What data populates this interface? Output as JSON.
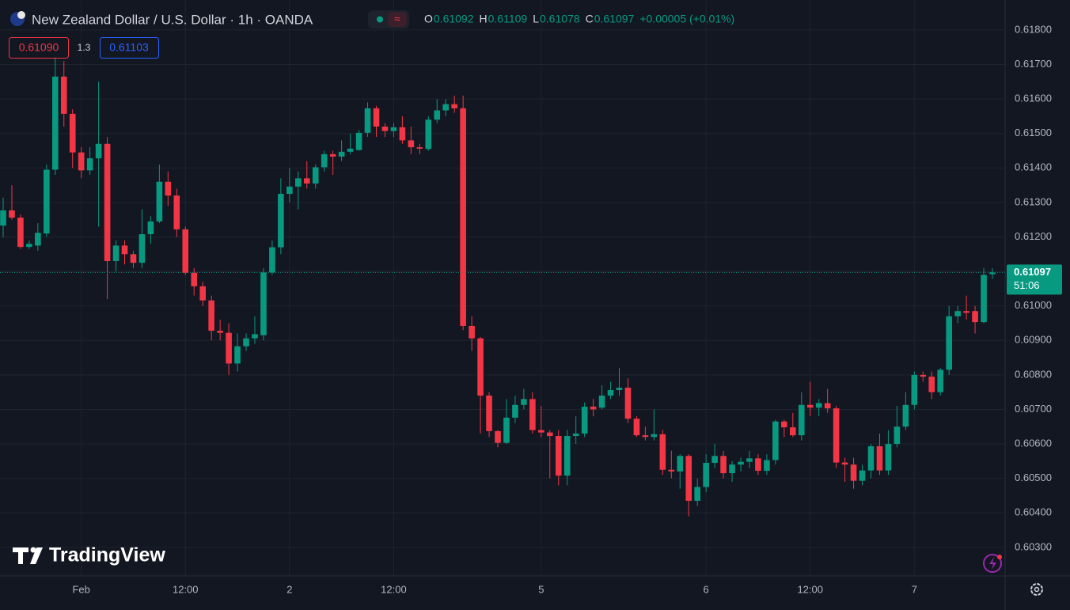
{
  "chart_data": {
    "type": "candlestick",
    "title": "New Zealand Dollar / U.S. Dollar · 1h · OANDA",
    "legend_labels": [
      "O",
      "H",
      "L",
      "C"
    ],
    "change": "+0.00005 (+0.01%)",
    "bid": "0.61090",
    "spread": "1.3",
    "ask": "0.61103",
    "countdown": "51:06",
    "brand": "TradingView",
    "up_color": "#089981",
    "down_color": "#f23645",
    "grid": true,
    "ylim": [
      0.60217,
      0.61887
    ],
    "yticks": [
      {
        "value": 0.603,
        "label": "0.60300"
      },
      {
        "value": 0.604,
        "label": "0.60400"
      },
      {
        "value": 0.605,
        "label": "0.60500"
      },
      {
        "value": 0.606,
        "label": "0.60600"
      },
      {
        "value": 0.607,
        "label": "0.60700"
      },
      {
        "value": 0.608,
        "label": "0.60800"
      },
      {
        "value": 0.609,
        "label": "0.60900"
      },
      {
        "value": 0.61,
        "label": "0.61000"
      },
      {
        "value": 0.611,
        "label": "0.61100"
      },
      {
        "value": 0.612,
        "label": "0.61200"
      },
      {
        "value": 0.613,
        "label": "0.61300"
      },
      {
        "value": 0.614,
        "label": "0.61400"
      },
      {
        "value": 0.615,
        "label": "0.61500"
      },
      {
        "value": 0.616,
        "label": "0.61600"
      },
      {
        "value": 0.617,
        "label": "0.61700"
      },
      {
        "value": 0.618,
        "label": "0.61800"
      }
    ],
    "categories": [
      null,
      null,
      null,
      null,
      null,
      null,
      null,
      null,
      null,
      "Feb",
      null,
      null,
      null,
      null,
      null,
      null,
      null,
      null,
      null,
      null,
      null,
      "12:00",
      null,
      null,
      null,
      null,
      null,
      null,
      null,
      null,
      null,
      null,
      null,
      "2",
      null,
      null,
      null,
      null,
      null,
      null,
      null,
      null,
      null,
      null,
      null,
      "12:00",
      null,
      null,
      null,
      null,
      null,
      null,
      null,
      null,
      null,
      null,
      null,
      null,
      null,
      null,
      null,
      null,
      "5",
      null,
      null,
      null,
      null,
      null,
      null,
      null,
      null,
      null,
      null,
      null,
      null,
      null,
      null,
      null,
      null,
      null,
      null,
      "6",
      null,
      null,
      null,
      null,
      null,
      null,
      null,
      null,
      null,
      null,
      null,
      "12:00",
      null,
      null,
      null,
      null,
      null,
      null,
      null,
      null,
      null,
      null,
      null,
      "7",
      null,
      null,
      null,
      null,
      null,
      null,
      null,
      null,
      null
    ],
    "open": [
      0.61233,
      0.61277,
      0.61256,
      0.61171,
      0.61175,
      0.6121,
      0.61395,
      0.61665,
      0.61557,
      0.61445,
      0.61393,
      0.61428,
      0.6147,
      0.6113,
      0.61175,
      0.6115,
      0.61125,
      0.61208,
      0.61245,
      0.6136,
      0.6132,
      0.61222,
      0.61096,
      0.61057,
      0.61016,
      0.60928,
      0.60922,
      0.60833,
      0.60883,
      0.60906,
      0.60915,
      0.61097,
      0.6117,
      0.61325,
      0.61346,
      0.6137,
      0.61355,
      0.61402,
      0.6144,
      0.61433,
      0.61447,
      0.61452,
      0.61502,
      0.61573,
      0.6152,
      0.61507,
      0.61518,
      0.6148,
      0.6146,
      0.61455,
      0.6154,
      0.61567,
      0.61585,
      0.61573,
      0.60942,
      0.60906,
      0.6074,
      0.60637,
      0.60603,
      0.60676,
      0.60713,
      0.6073,
      0.6064,
      0.60633,
      0.60623,
      0.60508,
      0.60623,
      0.6063,
      0.60708,
      0.60705,
      0.6074,
      0.60756,
      0.60763,
      0.60673,
      0.60625,
      0.6062,
      0.60628,
      0.60525,
      0.6052,
      0.60565,
      0.60435,
      0.60475,
      0.60545,
      0.60565,
      0.60515,
      0.6054,
      0.60548,
      0.60558,
      0.60522,
      0.60553,
      0.60665,
      0.60648,
      0.60625,
      0.60713,
      0.60705,
      0.60718,
      0.60703,
      0.60546,
      0.6054,
      0.60493,
      0.60523,
      0.60593,
      0.60523,
      0.606,
      0.6065,
      0.60713,
      0.608,
      0.60795,
      0.6075,
      0.60815,
      0.6097,
      0.60985,
      0.60985,
      0.60953,
      0.61092
    ],
    "high": [
      0.61314,
      0.6135,
      0.61265,
      0.6119,
      0.6124,
      0.6141,
      0.6172,
      0.6171,
      0.6157,
      0.6146,
      0.6146,
      0.6165,
      0.6149,
      0.6119,
      0.6119,
      0.6116,
      0.6128,
      0.6126,
      0.6141,
      0.6139,
      0.6134,
      0.6123,
      0.6111,
      0.6107,
      0.6103,
      0.6096,
      0.6095,
      0.6092,
      0.6092,
      0.6097,
      0.6111,
      0.6119,
      0.6137,
      0.614,
      0.6139,
      0.6142,
      0.6141,
      0.6145,
      0.6145,
      0.6148,
      0.615,
      0.6151,
      0.6159,
      0.6158,
      0.6153,
      0.6153,
      0.6155,
      0.6152,
      0.6147,
      0.6155,
      0.616,
      0.616,
      0.6161,
      0.6161,
      0.6097,
      0.6091,
      0.6075,
      0.6064,
      0.6073,
      0.6074,
      0.6076,
      0.6075,
      0.6071,
      0.6064,
      0.6064,
      0.6064,
      0.6068,
      0.6072,
      0.6073,
      0.6077,
      0.6078,
      0.6082,
      0.6079,
      0.6068,
      0.6065,
      0.607,
      0.6064,
      0.6058,
      0.6057,
      0.6057,
      0.605,
      0.6057,
      0.606,
      0.6058,
      0.6055,
      0.6056,
      0.6058,
      0.6057,
      0.6057,
      0.6067,
      0.6067,
      0.6069,
      0.6075,
      0.6078,
      0.6073,
      0.6076,
      0.6071,
      0.6056,
      0.6056,
      0.6054,
      0.606,
      0.6063,
      0.6064,
      0.6071,
      0.6075,
      0.6081,
      0.6081,
      0.6081,
      0.6082,
      0.61,
      0.61,
      0.6103,
      0.61,
      0.6111,
      0.61109
    ],
    "low": [
      0.61199,
      0.6125,
      0.61165,
      0.61165,
      0.6116,
      0.612,
      0.6138,
      0.6152,
      0.614,
      0.6137,
      0.6138,
      0.6123,
      0.6102,
      0.611,
      0.6112,
      0.6111,
      0.6111,
      0.6118,
      0.6124,
      0.6129,
      0.612,
      0.6109,
      0.6103,
      0.61,
      0.609,
      0.609,
      0.608,
      0.6081,
      0.6087,
      0.6089,
      0.609,
      0.6109,
      0.6115,
      0.613,
      0.6128,
      0.6134,
      0.6134,
      0.6139,
      0.6138,
      0.6142,
      0.6144,
      0.6145,
      0.6149,
      0.6149,
      0.6149,
      0.6149,
      0.6147,
      0.6144,
      0.6144,
      0.6145,
      0.6153,
      0.6155,
      0.6156,
      0.6093,
      0.6087,
      0.6063,
      0.6062,
      0.6059,
      0.606,
      0.6066,
      0.607,
      0.6063,
      0.6062,
      0.605,
      0.6048,
      0.6048,
      0.606,
      0.6062,
      0.6068,
      0.607,
      0.6073,
      0.6074,
      0.6066,
      0.6062,
      0.6061,
      0.6061,
      0.6051,
      0.605,
      0.6047,
      0.6039,
      0.6042,
      0.6046,
      0.6053,
      0.605,
      0.6049,
      0.6052,
      0.6053,
      0.6051,
      0.6051,
      0.6054,
      0.6062,
      0.6062,
      0.6061,
      0.6068,
      0.6068,
      0.6069,
      0.6053,
      0.6049,
      0.6047,
      0.6048,
      0.605,
      0.6051,
      0.6051,
      0.6059,
      0.6064,
      0.607,
      0.6078,
      0.6073,
      0.6074,
      0.608,
      0.6095,
      0.6096,
      0.6092,
      0.6095,
      0.61078
    ],
    "close": [
      0.61277,
      0.61256,
      0.61171,
      0.6118,
      0.61212,
      0.61395,
      0.61665,
      0.61557,
      0.61445,
      0.61393,
      0.61428,
      0.6147,
      0.6113,
      0.61175,
      0.6115,
      0.61125,
      0.61208,
      0.61245,
      0.6136,
      0.6132,
      0.61222,
      0.61096,
      0.61057,
      0.61016,
      0.60928,
      0.60922,
      0.60833,
      0.60883,
      0.60906,
      0.60918,
      0.61097,
      0.6117,
      0.61325,
      0.61346,
      0.6137,
      0.61355,
      0.61402,
      0.6144,
      0.61433,
      0.61447,
      0.61456,
      0.61502,
      0.61573,
      0.6152,
      0.61507,
      0.61518,
      0.6148,
      0.6146,
      0.61456,
      0.6154,
      0.61567,
      0.61585,
      0.61573,
      0.60942,
      0.60906,
      0.6074,
      0.60637,
      0.60603,
      0.60676,
      0.60713,
      0.6073,
      0.6064,
      0.60633,
      0.60623,
      0.60508,
      0.60623,
      0.6063,
      0.60708,
      0.607,
      0.6074,
      0.60756,
      0.60763,
      0.60673,
      0.60625,
      0.6062,
      0.60628,
      0.60525,
      0.6052,
      0.60565,
      0.60435,
      0.60475,
      0.60545,
      0.60565,
      0.60515,
      0.6054,
      0.60548,
      0.60558,
      0.60522,
      0.60553,
      0.60665,
      0.60648,
      0.60625,
      0.60713,
      0.60705,
      0.60718,
      0.60703,
      0.60546,
      0.6054,
      0.60493,
      0.60523,
      0.60593,
      0.60523,
      0.606,
      0.6065,
      0.60713,
      0.608,
      0.60795,
      0.6075,
      0.60815,
      0.6097,
      0.60985,
      0.6098,
      0.60953,
      0.6109,
      0.61097
    ]
  }
}
